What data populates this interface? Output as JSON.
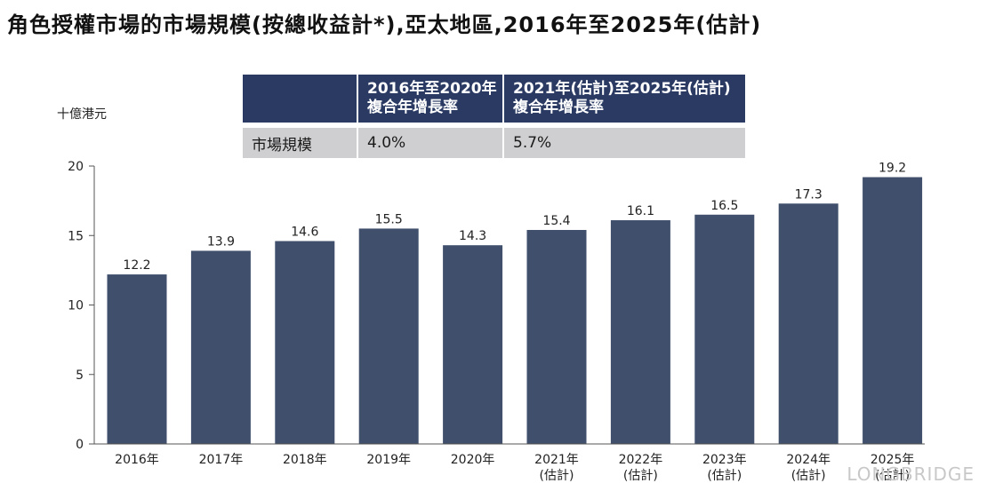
{
  "title": "角色授權市場的市場規模(按總收益計*),亞太地區,2016年至2025年(估計)",
  "unit_label": "十億港元",
  "cagr_table": {
    "headers": [
      [
        "2016年至2020年",
        "複合年增長率"
      ],
      [
        "2021年(估計)至2025年(估計)",
        "複合年增長率"
      ]
    ],
    "row_label": "市場規模",
    "values": [
      "4.0%",
      "5.7%"
    ]
  },
  "watermark": "LONGBRIDGE",
  "colors": {
    "bar": "#3f4f6c",
    "header": "#2a3a63",
    "row": "#cfcfd1"
  },
  "chart_data": {
    "type": "bar",
    "categories": [
      "2016年",
      "2017年",
      "2018年",
      "2019年",
      "2020年",
      "2021年",
      "2022年",
      "2023年",
      "2024年",
      "2025年"
    ],
    "category_sublabels": [
      "",
      "",
      "",
      "",
      "",
      "(估計)",
      "(估計)",
      "(估計)",
      "(估計)",
      "(估計)"
    ],
    "values": [
      12.2,
      13.9,
      14.6,
      15.5,
      14.3,
      15.4,
      16.1,
      16.5,
      17.3,
      19.2
    ],
    "value_labels": [
      "12.2",
      "13.9",
      "14.6",
      "15.5",
      "14.3",
      "15.4",
      "16.1",
      "16.5",
      "17.3",
      "19.2"
    ],
    "ylabel": "十億港元",
    "ylim": [
      0,
      20
    ],
    "yticks": [
      0,
      5,
      10,
      15,
      20
    ],
    "grid": false,
    "legend": "none"
  }
}
